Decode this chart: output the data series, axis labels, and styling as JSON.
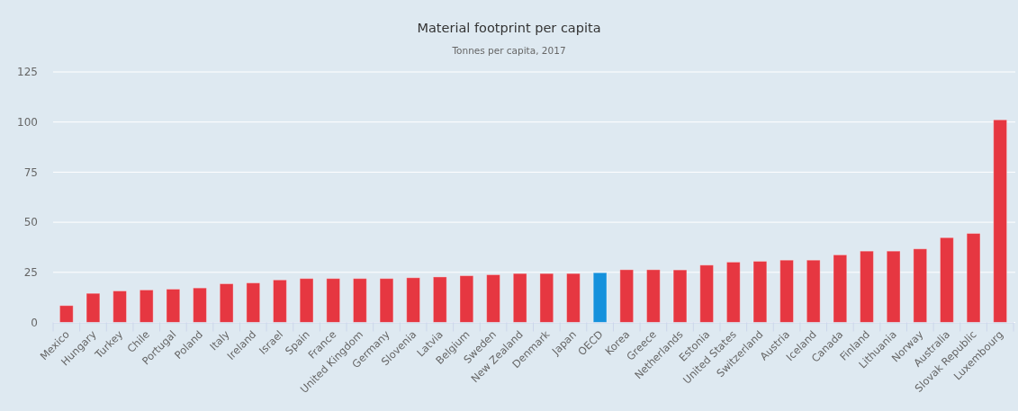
{
  "chart_data": {
    "type": "bar",
    "title": "Material footprint per capita",
    "subtitle": "Tonnes per capita, 2017",
    "categories": [
      "Mexico",
      "Hungary",
      "Turkey",
      "Chile",
      "Portugal",
      "Poland",
      "Italy",
      "Ireland",
      "Israel",
      "Spain",
      "France",
      "United Kingdom",
      "Germany",
      "Slovenia",
      "Latvia",
      "Belgium",
      "Sweden",
      "New Zealand",
      "Denmark",
      "Japan",
      "OECD",
      "Korea",
      "Greece",
      "Netherlands",
      "Estonia",
      "United States",
      "Switzerland",
      "Austria",
      "Iceland",
      "Canada",
      "Finland",
      "Lithuania",
      "Norway",
      "Australia",
      "Slovak Republic",
      "Luxembourg"
    ],
    "values": [
      8.4,
      14.5,
      15.7,
      16.2,
      16.6,
      17.2,
      19.3,
      19.7,
      21.2,
      21.9,
      21.9,
      21.9,
      21.9,
      22.3,
      22.7,
      23.3,
      23.8,
      24.4,
      24.4,
      24.4,
      24.8,
      26.3,
      26.3,
      26.2,
      28.6,
      30.1,
      30.5,
      31.1,
      31.1,
      33.7,
      35.6,
      35.6,
      36.7,
      42.3,
      44.4,
      101.1
    ],
    "colors": [
      "#e63741",
      "#e63741",
      "#e63741",
      "#e63741",
      "#e63741",
      "#e63741",
      "#e63741",
      "#e63741",
      "#e63741",
      "#e63741",
      "#e63741",
      "#e63741",
      "#e63741",
      "#e63741",
      "#e63741",
      "#e63741",
      "#e63741",
      "#e63741",
      "#e63741",
      "#e63741",
      "#1591dc",
      "#e63741",
      "#e63741",
      "#e63741",
      "#e63741",
      "#e63741",
      "#e63741",
      "#e63741",
      "#e63741",
      "#e63741",
      "#e63741",
      "#e63741",
      "#e63741",
      "#e63741",
      "#e63741",
      "#e63741"
    ],
    "ylim": [
      0,
      125
    ],
    "yticks": [
      0,
      25,
      50,
      75,
      100,
      125
    ],
    "grid": "y"
  }
}
